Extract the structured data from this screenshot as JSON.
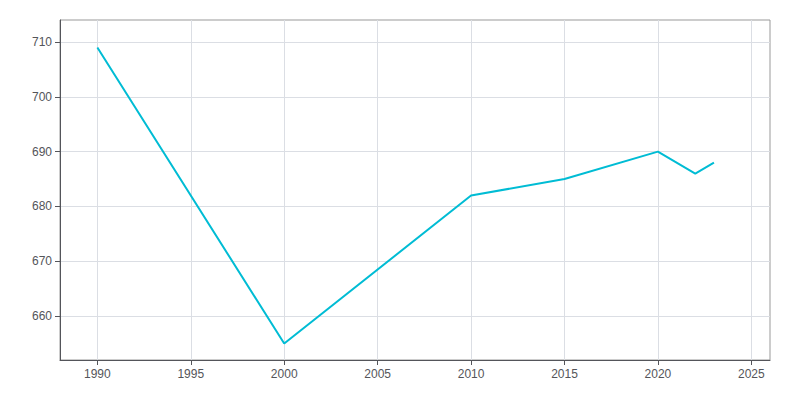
{
  "chart_data": {
    "type": "line",
    "x": [
      1990,
      2000,
      2010,
      2015,
      2020,
      2022,
      2023
    ],
    "values": [
      709,
      655,
      682,
      685,
      690,
      686,
      688
    ],
    "color": "#00BCD4",
    "xlim": [
      1988,
      2026
    ],
    "ylim": [
      652,
      714
    ],
    "xticks": [
      1990,
      1995,
      2000,
      2005,
      2010,
      2015,
      2020,
      2025
    ],
    "yticks": [
      660,
      670,
      680,
      690,
      700,
      710
    ],
    "grid": true
  }
}
